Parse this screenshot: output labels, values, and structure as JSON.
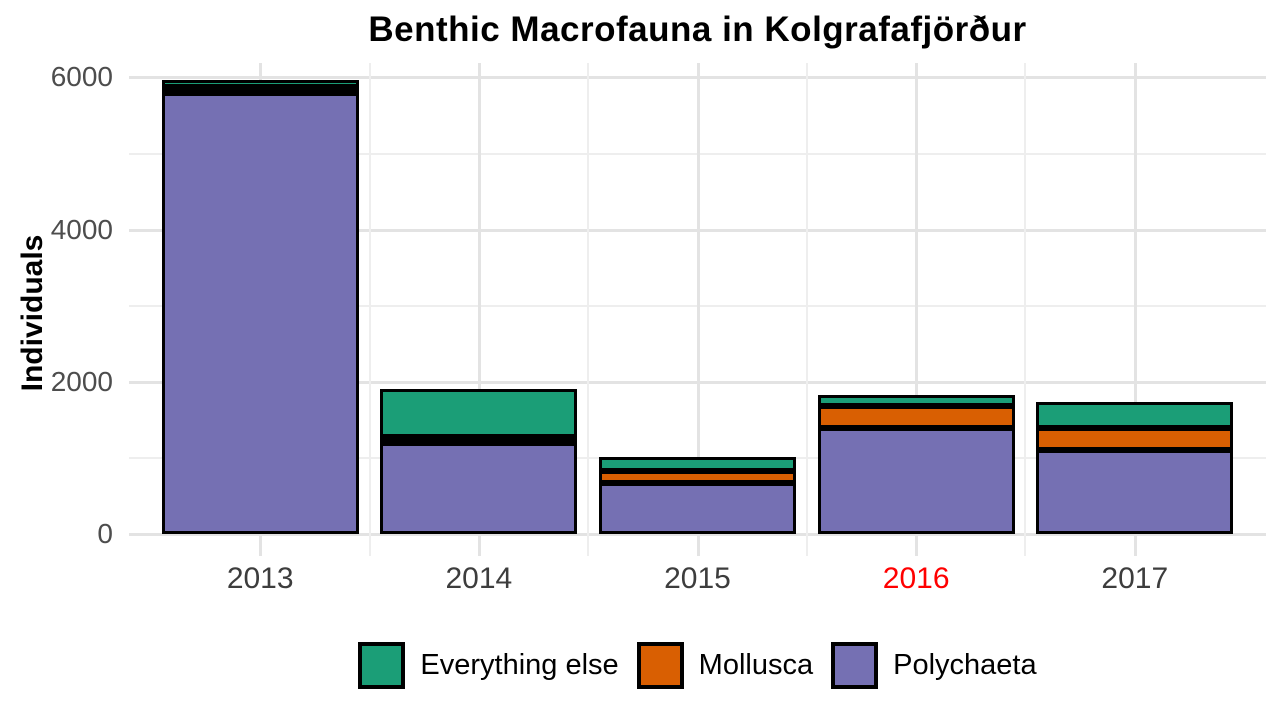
{
  "chart_data": {
    "type": "bar",
    "stacked": true,
    "title": "Benthic Macrofauna in Kolgrafafjörður",
    "xlabel": "",
    "ylabel": "Individuals",
    "categories": [
      "2013",
      "2014",
      "2015",
      "2016",
      "2017"
    ],
    "series": [
      {
        "name": "Everything else",
        "color": "#1B9E77",
        "values": [
          95,
          620,
          180,
          145,
          340
        ]
      },
      {
        "name": "Mollusca",
        "color": "#D95F02",
        "values": [
          15,
          80,
          165,
          290,
          280
        ]
      },
      {
        "name": "Polychaeta",
        "color": "#7570B3",
        "values": [
          5790,
          1200,
          665,
          1395,
          1110
        ]
      }
    ],
    "totals": [
      5900,
      1900,
      1010,
      1830,
      1730
    ],
    "stack_order_bottom_to_top": [
      "Polychaeta",
      "Mollusca",
      "Everything else"
    ],
    "bar_outline_color": "#000000",
    "y_ticks": [
      0,
      2000,
      4000,
      6000
    ],
    "y_tick_labels": [
      "0",
      "2000",
      "4000",
      "6000"
    ],
    "y_minor_gridlines": [
      1000,
      3000,
      5000
    ],
    "ylim": [
      0,
      6190
    ],
    "grid": true,
    "legend_position": "bottom",
    "highlight": {
      "category": "2016",
      "color": "#FF0000"
    },
    "style": {
      "axis_text_color_y": "#4D4D4D",
      "axis_text_color_x": "#3d3d3d",
      "grid_color_major": "#E3E3E3",
      "grid_color_minor": "#EEEEEE",
      "background": "#FFFFFF"
    }
  }
}
